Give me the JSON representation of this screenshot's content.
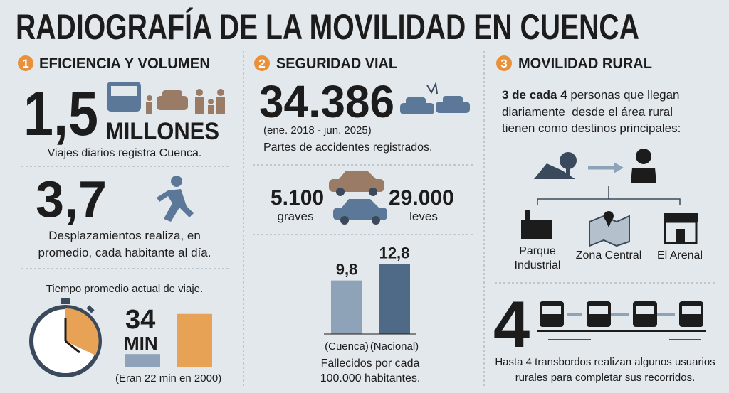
{
  "title": "RADIOGRAFÍA DE LA MOVILIDAD EN CUENCA",
  "sections": [
    {
      "number": "1",
      "heading": "EFICIENCIA Y VOLUMEN",
      "trips": {
        "value": "1,5",
        "unit": "MILLONES",
        "caption": "Viajes diarios registra Cuenca."
      },
      "trips_per_person": {
        "value": "3,7",
        "caption_lines": [
          "Desplazamientos realiza, en",
          "promedio, cada habitante al día."
        ]
      },
      "travel_time": {
        "caption": "Tiempo promedio actual de viaje.",
        "value": "34",
        "unit": "MIN",
        "note": "(Eran 22 min en 2000)",
        "chart": {
          "type": "bar",
          "values": [
            22,
            34
          ],
          "colors": [
            "#8fa3b8",
            "#e8a256"
          ],
          "ylim": [
            18,
            35
          ]
        }
      }
    },
    {
      "number": "2",
      "heading": "SEGURIDAD VIAL",
      "accidents": {
        "value": "34.386",
        "period": "(ene. 2018 - jun. 2025)",
        "caption": "Partes de accidentes registrados."
      },
      "severity": {
        "severe": "5.100",
        "severe_label": "graves",
        "minor": "29.000",
        "minor_label": "leves"
      },
      "fatalities": {
        "chart": {
          "type": "bar",
          "categories": [
            "(Cuenca)",
            "(Nacional)"
          ],
          "values": [
            9.8,
            12.8
          ],
          "value_labels": [
            "9,8",
            "12,8"
          ],
          "colors": [
            "#8fa3b8",
            "#4e6a86"
          ],
          "ylim": [
            0,
            13
          ]
        },
        "caption_lines": [
          "Fallecidos por cada",
          "100.000 habitantes."
        ]
      }
    },
    {
      "number": "3",
      "heading": "MOVILIDAD RURAL",
      "intro": {
        "highlight": "3 de cada 4",
        "lines": [
          " personas que llegan",
          "diariamente  desde el área rural",
          "tienen como destinos principales:"
        ]
      },
      "destinations": [
        [
          "Parque",
          "Industrial"
        ],
        [
          "Zona Central"
        ],
        [
          "El Arenal"
        ]
      ],
      "transfers": {
        "value": "4",
        "caption_lines": [
          "Hasta 4 transbordos realizan algunos usuarios",
          "rurales para completar sus recorridos."
        ]
      }
    }
  ]
}
